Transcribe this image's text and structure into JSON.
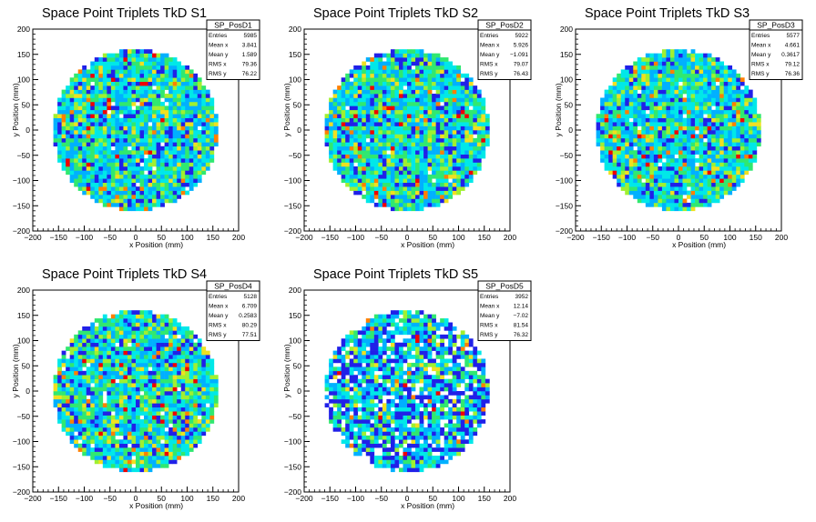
{
  "chart_data": [
    {
      "type": "heatmap",
      "title": "Space Point Triplets TkD S1",
      "xlabel": "x Position (mm)",
      "ylabel": "y Position (mm)",
      "xlim": [
        -200,
        200
      ],
      "ylim": [
        -200,
        200
      ],
      "xticks": [
        "−200",
        "−150",
        "−100",
        "−50",
        "0",
        "50",
        "100",
        "150",
        "200"
      ],
      "yticks": [
        "−200",
        "−150",
        "−100",
        "−50",
        "0",
        "50",
        "100",
        "150",
        "200"
      ],
      "filled_region": {
        "shape": "disk",
        "center": [
          0,
          0
        ],
        "radius_mm": 160
      },
      "stats": {
        "name": "SP_PosD1",
        "rows": [
          {
            "label": "Entries",
            "value": "5985"
          },
          {
            "label": "Mean x",
            "value": "3.841"
          },
          {
            "label": "Mean y",
            "value": "1.589"
          },
          {
            "label": "RMS x",
            "value": "79.36"
          },
          {
            "label": "RMS y",
            "value": "76.22"
          }
        ]
      }
    },
    {
      "type": "heatmap",
      "title": "Space Point Triplets TkD S2",
      "xlabel": "x Position (mm)",
      "ylabel": "y Position (mm)",
      "xlim": [
        -200,
        200
      ],
      "ylim": [
        -200,
        200
      ],
      "xticks": [
        "−200",
        "−150",
        "−100",
        "−50",
        "0",
        "50",
        "100",
        "150",
        "200"
      ],
      "yticks": [
        "−200",
        "−150",
        "−100",
        "−50",
        "0",
        "50",
        "100",
        "150",
        "200"
      ],
      "filled_region": {
        "shape": "disk",
        "center": [
          0,
          0
        ],
        "radius_mm": 160
      },
      "stats": {
        "name": "SP_PosD2",
        "rows": [
          {
            "label": "Entries",
            "value": "5922"
          },
          {
            "label": "Mean x",
            "value": "5.926"
          },
          {
            "label": "Mean y",
            "value": "−1.091"
          },
          {
            "label": "RMS x",
            "value": "79.07"
          },
          {
            "label": "RMS y",
            "value": "76.43"
          }
        ]
      }
    },
    {
      "type": "heatmap",
      "title": "Space Point Triplets TkD S3",
      "xlabel": "x Position (mm)",
      "ylabel": "y Position (mm)",
      "xlim": [
        -200,
        200
      ],
      "ylim": [
        -200,
        200
      ],
      "xticks": [
        "−200",
        "−150",
        "−100",
        "−50",
        "0",
        "50",
        "100",
        "150",
        "200"
      ],
      "yticks": [
        "−200",
        "−150",
        "−100",
        "−50",
        "0",
        "50",
        "100",
        "150",
        "200"
      ],
      "filled_region": {
        "shape": "disk",
        "center": [
          0,
          0
        ],
        "radius_mm": 160
      },
      "stats": {
        "name": "SP_PosD3",
        "rows": [
          {
            "label": "Entries",
            "value": "5577"
          },
          {
            "label": "Mean x",
            "value": "4.661"
          },
          {
            "label": "Mean y",
            "value": "0.3617"
          },
          {
            "label": "RMS x",
            "value": "79.12"
          },
          {
            "label": "RMS y",
            "value": "76.36"
          }
        ]
      }
    },
    {
      "type": "heatmap",
      "title": "Space Point Triplets TkD S4",
      "xlabel": "x Position (mm)",
      "ylabel": "y Position (mm)",
      "xlim": [
        -200,
        200
      ],
      "ylim": [
        -200,
        200
      ],
      "xticks": [
        "−200",
        "−150",
        "−100",
        "−50",
        "0",
        "50",
        "100",
        "150",
        "200"
      ],
      "yticks": [
        "−200",
        "−150",
        "−100",
        "−50",
        "0",
        "50",
        "100",
        "150",
        "200"
      ],
      "filled_region": {
        "shape": "disk",
        "center": [
          0,
          0
        ],
        "radius_mm": 160
      },
      "stats": {
        "name": "SP_PosD4",
        "rows": [
          {
            "label": "Entries",
            "value": "5128"
          },
          {
            "label": "Mean x",
            "value": "6.709"
          },
          {
            "label": "Mean y",
            "value": "0.2583"
          },
          {
            "label": "RMS x",
            "value": "80.29"
          },
          {
            "label": "RMS y",
            "value": "77.51"
          }
        ]
      }
    },
    {
      "type": "heatmap",
      "title": "Space Point Triplets TkD S5",
      "xlabel": "x Position (mm)",
      "ylabel": "y Position (mm)",
      "xlim": [
        -200,
        200
      ],
      "ylim": [
        -200,
        200
      ],
      "xticks": [
        "−200",
        "−150",
        "−100",
        "−50",
        "0",
        "50",
        "100",
        "150",
        "200"
      ],
      "yticks": [
        "−200",
        "−150",
        "−100",
        "−50",
        "0",
        "50",
        "100",
        "150",
        "200"
      ],
      "filled_region": {
        "shape": "disk",
        "center": [
          0,
          0
        ],
        "radius_mm": 160
      },
      "stats": {
        "name": "SP_PosD5",
        "rows": [
          {
            "label": "Entries",
            "value": "3952"
          },
          {
            "label": "Mean x",
            "value": "12.14"
          },
          {
            "label": "Mean y",
            "value": "−7.02"
          },
          {
            "label": "RMS x",
            "value": "81.54"
          },
          {
            "label": "RMS y",
            "value": "76.32"
          }
        ]
      }
    }
  ],
  "palette": [
    "#2020e8",
    "#00b0ff",
    "#00e8e8",
    "#30e870",
    "#a0f030",
    "#f0e020",
    "#ff8000",
    "#f00000"
  ]
}
